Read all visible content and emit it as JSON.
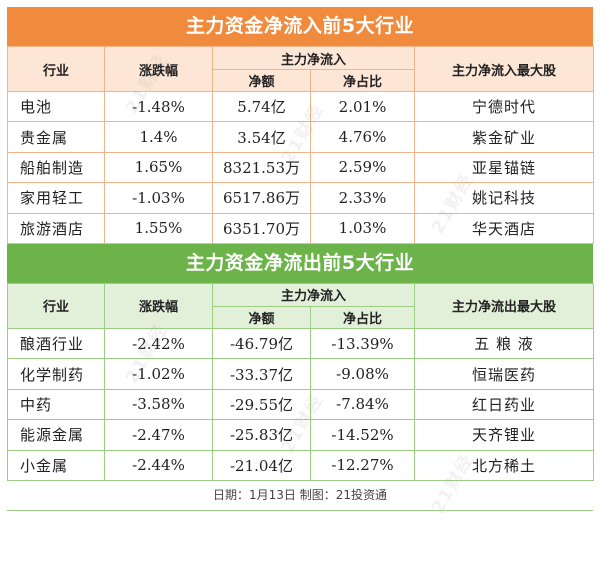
{
  "inflow": {
    "title": "主力资金净流入前5大行业",
    "headers": {
      "industry": "行业",
      "change": "涨跌幅",
      "main_net": "主力净流入",
      "amount": "净额",
      "ratio": "净占比",
      "top_stock": "主力净流入最大股"
    },
    "rows": [
      {
        "industry": "电池",
        "change": "-1.48%",
        "amount": "5.74亿",
        "ratio": "2.01%",
        "stock": "宁德时代"
      },
      {
        "industry": "贵金属",
        "change": "1.4%",
        "amount": "3.54亿",
        "ratio": "4.76%",
        "stock": "紫金矿业"
      },
      {
        "industry": "船舶制造",
        "change": "1.65%",
        "amount": "8321.53万",
        "ratio": "2.59%",
        "stock": "亚星锚链"
      },
      {
        "industry": "家用轻工",
        "change": "-1.03%",
        "amount": "6517.86万",
        "ratio": "2.33%",
        "stock": "姚记科技"
      },
      {
        "industry": "旅游酒店",
        "change": "1.55%",
        "amount": "6351.70万",
        "ratio": "1.03%",
        "stock": "华天酒店"
      }
    ]
  },
  "outflow": {
    "title": "主力资金净流出前5大行业",
    "headers": {
      "industry": "行业",
      "change": "涨跌幅",
      "main_net": "主力净流入",
      "amount": "净额",
      "ratio": "净占比",
      "top_stock": "主力净流出最大股"
    },
    "rows": [
      {
        "industry": "酿酒行业",
        "change": "-2.42%",
        "amount": "-46.79亿",
        "ratio": "-13.39%",
        "stock": "五 粮 液"
      },
      {
        "industry": "化学制药",
        "change": "-1.02%",
        "amount": "-33.37亿",
        "ratio": "-9.08%",
        "stock": "恒瑞医药"
      },
      {
        "industry": "中药",
        "change": "-3.58%",
        "amount": "-29.55亿",
        "ratio": "-7.84%",
        "stock": "红日药业"
      },
      {
        "industry": "能源金属",
        "change": "-2.47%",
        "amount": "-25.83亿",
        "ratio": "-14.52%",
        "stock": "天齐锂业"
      },
      {
        "industry": "小金属",
        "change": "-2.44%",
        "amount": "-21.04亿",
        "ratio": "-12.27%",
        "stock": "北方稀土"
      }
    ]
  },
  "footer": "日期：1月13日  制图：21投资通",
  "watermark": "21财经",
  "colors": {
    "inflow_banner": "#f08a3c",
    "inflow_header": "#fde6d6",
    "outflow_banner": "#6cb34a",
    "outflow_header": "#e2f0d9"
  }
}
